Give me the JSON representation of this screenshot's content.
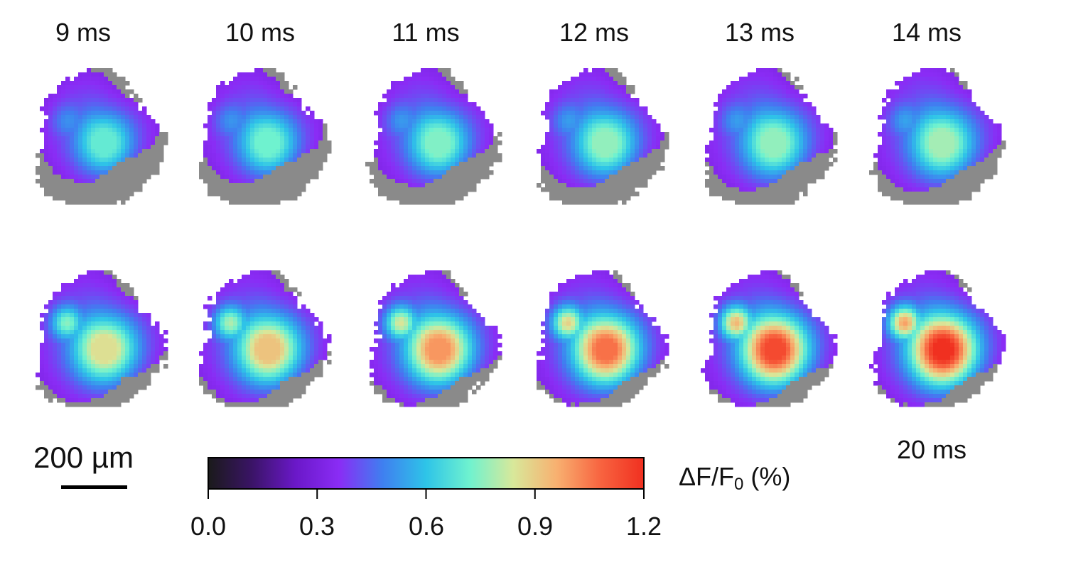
{
  "timepoints_row1": [
    "9 ms",
    "10 ms",
    "11 ms",
    "12 ms",
    "13 ms",
    "14 ms"
  ],
  "last_timepoint_label": "20 ms",
  "scale_bar": {
    "label": "200 µm"
  },
  "colorbar": {
    "title_main": "ΔF/F",
    "title_sub": "0",
    "title_unit": " (%)",
    "ticks": [
      "0.0",
      "0.3",
      "0.6",
      "0.9",
      "1.2"
    ],
    "range": [
      0.0,
      1.2
    ],
    "colormap": [
      "#1a1a1a",
      "#3a1466",
      "#6a18c8",
      "#8a2cf5",
      "#3f7ff0",
      "#2ec4e8",
      "#6ff2cf",
      "#d8e89a",
      "#f8b070",
      "#f86440",
      "#f03020"
    ]
  },
  "colors": {
    "mask_gray": "#8a8a8a",
    "outline": "#000000"
  },
  "panels": [
    {
      "row": 0,
      "peak": 0.7,
      "spread": 0.55
    },
    {
      "row": 0,
      "peak": 0.72,
      "spread": 0.6
    },
    {
      "row": 0,
      "peak": 0.74,
      "spread": 0.66
    },
    {
      "row": 0,
      "peak": 0.76,
      "spread": 0.72
    },
    {
      "row": 0,
      "peak": 0.76,
      "spread": 0.78
    },
    {
      "row": 0,
      "peak": 0.78,
      "spread": 0.82
    },
    {
      "row": 1,
      "peak": 0.86,
      "spread": 0.88
    },
    {
      "row": 1,
      "peak": 0.92,
      "spread": 0.9
    },
    {
      "row": 1,
      "peak": 1.0,
      "spread": 0.92
    },
    {
      "row": 1,
      "peak": 1.06,
      "spread": 0.94
    },
    {
      "row": 1,
      "peak": 1.14,
      "spread": 0.96
    },
    {
      "row": 1,
      "peak": 1.2,
      "spread": 0.98
    }
  ]
}
